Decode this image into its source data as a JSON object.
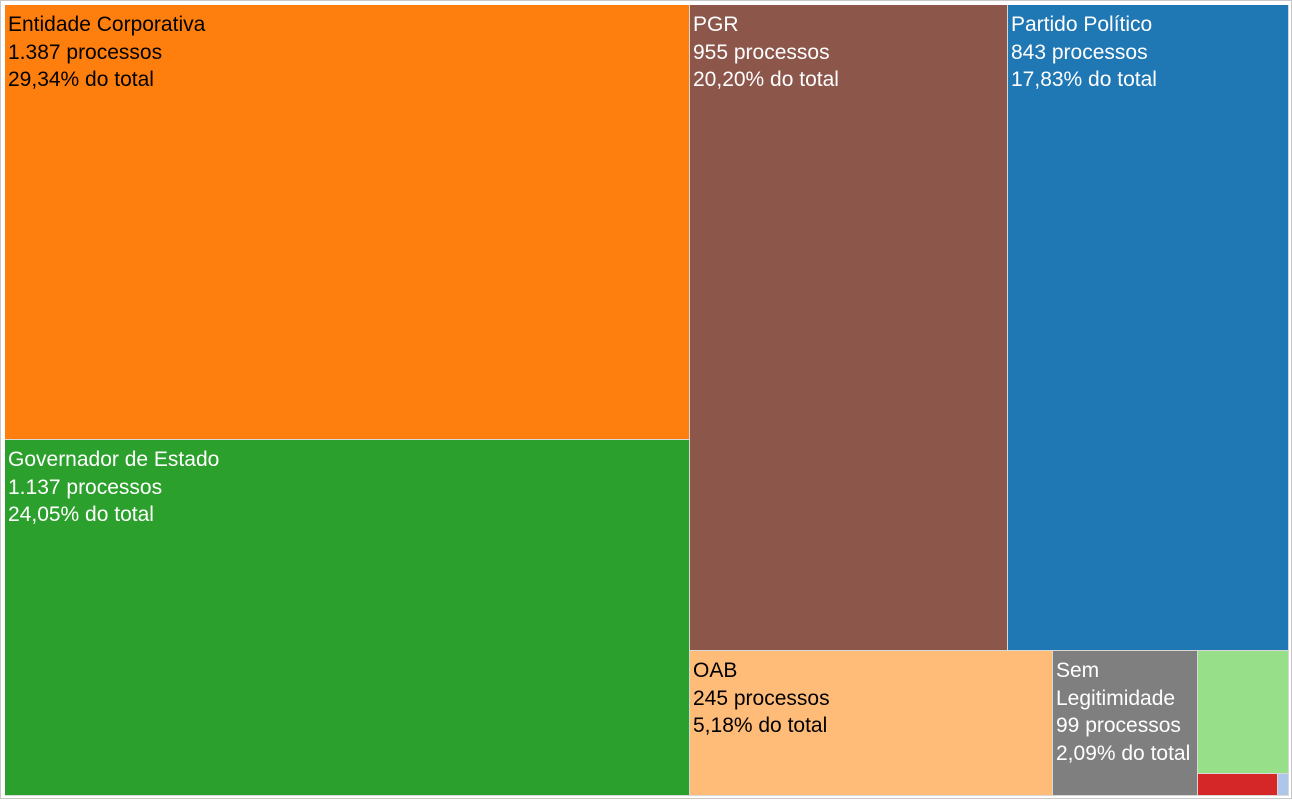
{
  "chart_data": {
    "type": "treemap",
    "title": "",
    "items": [
      {
        "name": "Entidade Corporativa",
        "value": 1387,
        "value_label": "1.387 processos",
        "percent_label": "29,34% do total",
        "color": "#ff7f0e",
        "text_color": "#000000"
      },
      {
        "name": "Governador de Estado",
        "value": 1137,
        "value_label": "1.137 processos",
        "percent_label": "24,05% do total",
        "color": "#2ca02c",
        "text_color": "#ffffff"
      },
      {
        "name": "PGR",
        "value": 955,
        "value_label": "955 processos",
        "percent_label": "20,20% do total",
        "color": "#8c564b",
        "text_color": "#ffffff"
      },
      {
        "name": "Partido Político",
        "value": 843,
        "value_label": "843 processos",
        "percent_label": "17,83% do total",
        "color": "#1f77b4",
        "text_color": "#ffffff"
      },
      {
        "name": "OAB",
        "value": 245,
        "value_label": "245 processos",
        "percent_label": "5,18% do total",
        "color": "#ffbb78",
        "text_color": "#000000"
      },
      {
        "name": "Sem Legitimidade",
        "value": 99,
        "value_label": "99 processos",
        "percent_label": "2,09% do total",
        "color": "#7f7f7f",
        "text_color": "#ffffff"
      },
      {
        "name": "",
        "value": 46,
        "color": "#98df8a"
      },
      {
        "name": "",
        "value": 13,
        "color": "#d62728"
      },
      {
        "name": "",
        "value": 2,
        "color": "#aec7e8"
      }
    ]
  }
}
